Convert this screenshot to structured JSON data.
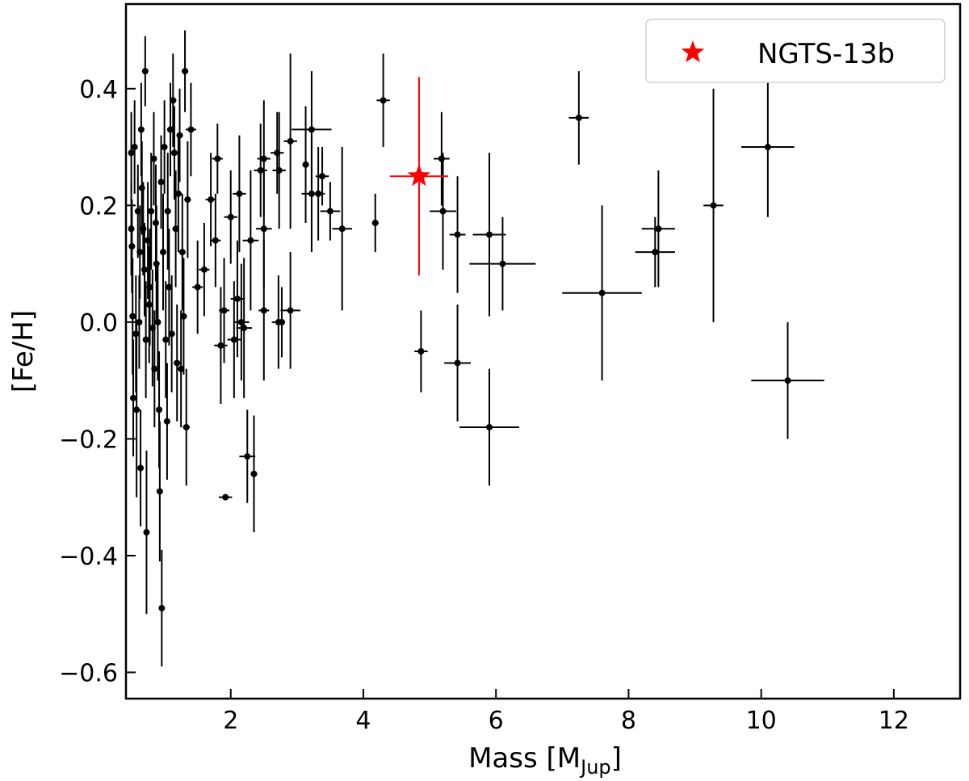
{
  "chart_data": {
    "type": "scatter",
    "xlabel": "Mass [M",
    "xlabel_sub": "Jup",
    "xlabel_end": "]",
    "ylabel": "[Fe/H]",
    "xlim": [
      0.42,
      13.0
    ],
    "ylim": [
      -0.645,
      0.545
    ],
    "xticks": [
      2,
      4,
      6,
      8,
      10,
      12
    ],
    "yticks": [
      -0.6,
      -0.4,
      -0.2,
      0.0,
      0.2,
      0.4
    ],
    "xtick_labels": [
      "2",
      "4",
      "6",
      "8",
      "10",
      "12"
    ],
    "ytick_labels": [
      "−0.6",
      "−0.4",
      "−0.2",
      "0.0",
      "0.2",
      "0.4"
    ],
    "grid": false,
    "legend_position": "top-right",
    "colors": {
      "population": "#000000",
      "highlight": "#ff0000"
    },
    "series": [
      {
        "marker": "circle",
        "points": [
          {
            "x": 0.5,
            "y": 0.29,
            "xerr": 0.02,
            "yerr": 0.07
          },
          {
            "x": 0.5,
            "y": 0.16,
            "xerr": 0.02,
            "yerr": 0.08
          },
          {
            "x": 0.51,
            "y": 0.13,
            "xerr": 0.02,
            "yerr": 0.08
          },
          {
            "x": 0.52,
            "y": 0.01,
            "xerr": 0.02,
            "yerr": 0.1
          },
          {
            "x": 0.53,
            "y": -0.13,
            "xerr": 0.02,
            "yerr": 0.1
          },
          {
            "x": 0.55,
            "y": 0.3,
            "xerr": 0.02,
            "yerr": 0.08
          },
          {
            "x": 0.57,
            "y": -0.02,
            "xerr": 0.02,
            "yerr": 0.1
          },
          {
            "x": 0.58,
            "y": -0.15,
            "xerr": 0.02,
            "yerr": 0.15
          },
          {
            "x": 0.6,
            "y": 0.19,
            "xerr": 0.03,
            "yerr": 0.08
          },
          {
            "x": 0.62,
            "y": 0.0,
            "xerr": 0.03,
            "yerr": 0.08
          },
          {
            "x": 0.63,
            "y": 0.12,
            "xerr": 0.03,
            "yerr": 0.08
          },
          {
            "x": 0.64,
            "y": -0.25,
            "xerr": 0.03,
            "yerr": 0.1
          },
          {
            "x": 0.65,
            "y": 0.33,
            "xerr": 0.03,
            "yerr": 0.08
          },
          {
            "x": 0.66,
            "y": 0.23,
            "xerr": 0.03,
            "yerr": 0.08
          },
          {
            "x": 0.68,
            "y": 0.16,
            "xerr": 0.03,
            "yerr": 0.08
          },
          {
            "x": 0.7,
            "y": 0.09,
            "xerr": 0.03,
            "yerr": 0.08
          },
          {
            "x": 0.71,
            "y": 0.43,
            "xerr": 0.03,
            "yerr": 0.06
          },
          {
            "x": 0.72,
            "y": -0.03,
            "xerr": 0.03,
            "yerr": 0.1
          },
          {
            "x": 0.73,
            "y": -0.36,
            "xerr": 0.03,
            "yerr": 0.14
          },
          {
            "x": 0.75,
            "y": 0.14,
            "xerr": 0.03,
            "yerr": 0.1
          },
          {
            "x": 0.77,
            "y": 0.03,
            "xerr": 0.03,
            "yerr": 0.1
          },
          {
            "x": 0.78,
            "y": 0.06,
            "xerr": 0.03,
            "yerr": 0.1
          },
          {
            "x": 0.8,
            "y": 0.19,
            "xerr": 0.03,
            "yerr": 0.1
          },
          {
            "x": 0.82,
            "y": -0.01,
            "xerr": 0.03,
            "yerr": 0.1
          },
          {
            "x": 0.84,
            "y": 0.28,
            "xerr": 0.04,
            "yerr": 0.08
          },
          {
            "x": 0.85,
            "y": -0.08,
            "xerr": 0.04,
            "yerr": 0.1
          },
          {
            "x": 0.87,
            "y": 0.17,
            "xerr": 0.04,
            "yerr": 0.1
          },
          {
            "x": 0.88,
            "y": 0.1,
            "xerr": 0.04,
            "yerr": 0.1
          },
          {
            "x": 0.9,
            "y": 0.0,
            "xerr": 0.04,
            "yerr": 0.1
          },
          {
            "x": 0.92,
            "y": -0.15,
            "xerr": 0.04,
            "yerr": 0.1
          },
          {
            "x": 0.93,
            "y": -0.29,
            "xerr": 0.04,
            "yerr": 0.12
          },
          {
            "x": 0.95,
            "y": 0.24,
            "xerr": 0.04,
            "yerr": 0.08
          },
          {
            "x": 0.96,
            "y": -0.49,
            "xerr": 0.04,
            "yerr": 0.1
          },
          {
            "x": 0.98,
            "y": 0.12,
            "xerr": 0.04,
            "yerr": 0.1
          },
          {
            "x": 1.0,
            "y": 0.3,
            "xerr": 0.04,
            "yerr": 0.08
          },
          {
            "x": 1.02,
            "y": -0.03,
            "xerr": 0.04,
            "yerr": 0.1
          },
          {
            "x": 1.04,
            "y": -0.17,
            "xerr": 0.05,
            "yerr": 0.1
          },
          {
            "x": 1.05,
            "y": 0.19,
            "xerr": 0.05,
            "yerr": 0.1
          },
          {
            "x": 1.07,
            "y": 0.06,
            "xerr": 0.05,
            "yerr": 0.1
          },
          {
            "x": 1.09,
            "y": 0.33,
            "xerr": 0.05,
            "yerr": 0.08
          },
          {
            "x": 1.11,
            "y": -0.02,
            "xerr": 0.05,
            "yerr": 0.1
          },
          {
            "x": 1.13,
            "y": 0.38,
            "xerr": 0.05,
            "yerr": 0.08
          },
          {
            "x": 1.15,
            "y": 0.29,
            "xerr": 0.05,
            "yerr": 0.08
          },
          {
            "x": 1.17,
            "y": 0.16,
            "xerr": 0.05,
            "yerr": 0.1
          },
          {
            "x": 1.19,
            "y": -0.07,
            "xerr": 0.05,
            "yerr": 0.1
          },
          {
            "x": 1.21,
            "y": 0.22,
            "xerr": 0.05,
            "yerr": 0.1
          },
          {
            "x": 1.23,
            "y": 0.32,
            "xerr": 0.05,
            "yerr": 0.08
          },
          {
            "x": 1.25,
            "y": -0.08,
            "xerr": 0.05,
            "yerr": 0.1
          },
          {
            "x": 1.27,
            "y": 0.12,
            "xerr": 0.05,
            "yerr": 0.1
          },
          {
            "x": 1.29,
            "y": 0.01,
            "xerr": 0.05,
            "yerr": 0.1
          },
          {
            "x": 1.31,
            "y": 0.43,
            "xerr": 0.05,
            "yerr": 0.07
          },
          {
            "x": 1.33,
            "y": -0.18,
            "xerr": 0.05,
            "yerr": 0.1
          },
          {
            "x": 1.35,
            "y": 0.21,
            "xerr": 0.05,
            "yerr": 0.1
          },
          {
            "x": 1.4,
            "y": 0.33,
            "xerr": 0.08,
            "yerr": 0.08
          },
          {
            "x": 1.5,
            "y": 0.06,
            "xerr": 0.08,
            "yerr": 0.08
          },
          {
            "x": 1.6,
            "y": 0.09,
            "xerr": 0.08,
            "yerr": 0.08
          },
          {
            "x": 1.7,
            "y": 0.21,
            "xerr": 0.08,
            "yerr": 0.08
          },
          {
            "x": 1.77,
            "y": 0.14,
            "xerr": 0.08,
            "yerr": 0.08
          },
          {
            "x": 1.8,
            "y": 0.28,
            "xerr": 0.08,
            "yerr": 0.06
          },
          {
            "x": 1.85,
            "y": -0.04,
            "xerr": 0.1,
            "yerr": 0.1
          },
          {
            "x": 1.9,
            "y": 0.02,
            "xerr": 0.08,
            "yerr": 0.09
          },
          {
            "x": 1.92,
            "y": -0.3,
            "xerr": 0.1,
            "yerr": 0.0
          },
          {
            "x": 2.0,
            "y": 0.18,
            "xerr": 0.1,
            "yerr": 0.08
          },
          {
            "x": 2.05,
            "y": -0.03,
            "xerr": 0.1,
            "yerr": 0.1
          },
          {
            "x": 2.1,
            "y": 0.04,
            "xerr": 0.1,
            "yerr": 0.1
          },
          {
            "x": 2.13,
            "y": 0.22,
            "xerr": 0.1,
            "yerr": 0.1
          },
          {
            "x": 2.16,
            "y": 0.0,
            "xerr": 0.12,
            "yerr": 0.1
          },
          {
            "x": 2.2,
            "y": -0.01,
            "xerr": 0.12,
            "yerr": 0.12
          },
          {
            "x": 2.25,
            "y": -0.23,
            "xerr": 0.12,
            "yerr": 0.08
          },
          {
            "x": 2.3,
            "y": 0.14,
            "xerr": 0.12,
            "yerr": 0.12
          },
          {
            "x": 2.35,
            "y": -0.26,
            "xerr": 0.05,
            "yerr": 0.1
          },
          {
            "x": 2.45,
            "y": 0.26,
            "xerr": 0.1,
            "yerr": 0.08
          },
          {
            "x": 2.5,
            "y": 0.28,
            "xerr": 0.1,
            "yerr": 0.1
          },
          {
            "x": 2.5,
            "y": 0.16,
            "xerr": 0.12,
            "yerr": 0.1
          },
          {
            "x": 2.5,
            "y": 0.02,
            "xerr": 0.08,
            "yerr": 0.12
          },
          {
            "x": 2.7,
            "y": 0.29,
            "xerr": 0.1,
            "yerr": 0.07
          },
          {
            "x": 2.72,
            "y": 0.0,
            "xerr": 0.1,
            "yerr": 0.08
          },
          {
            "x": 2.73,
            "y": 0.26,
            "xerr": 0.1,
            "yerr": 0.1
          },
          {
            "x": 2.77,
            "y": 0.0,
            "xerr": 0.05,
            "yerr": 0.06
          },
          {
            "x": 2.9,
            "y": 0.31,
            "xerr": 0.1,
            "yerr": 0.15
          },
          {
            "x": 2.9,
            "y": 0.02,
            "xerr": 0.15,
            "yerr": 0.1
          },
          {
            "x": 3.13,
            "y": 0.27,
            "xerr": 0.05,
            "yerr": 0.1
          },
          {
            "x": 3.22,
            "y": 0.33,
            "xerr": 0.3,
            "yerr": 0.1
          },
          {
            "x": 3.22,
            "y": 0.22,
            "xerr": 0.15,
            "yerr": 0.1
          },
          {
            "x": 3.32,
            "y": 0.22,
            "xerr": 0.1,
            "yerr": 0.08
          },
          {
            "x": 3.38,
            "y": 0.25,
            "xerr": 0.1,
            "yerr": 0.05
          },
          {
            "x": 3.5,
            "y": 0.19,
            "xerr": 0.15,
            "yerr": 0.05
          },
          {
            "x": 3.68,
            "y": 0.16,
            "xerr": 0.15,
            "yerr": 0.14
          },
          {
            "x": 4.18,
            "y": 0.17,
            "xerr": 0.05,
            "yerr": 0.05
          },
          {
            "x": 4.3,
            "y": 0.38,
            "xerr": 0.1,
            "yerr": 0.08
          },
          {
            "x": 4.87,
            "y": -0.05,
            "xerr": 0.1,
            "yerr": 0.07
          },
          {
            "x": 5.18,
            "y": 0.28,
            "xerr": 0.12,
            "yerr": 0.08
          },
          {
            "x": 5.2,
            "y": 0.19,
            "xerr": 0.2,
            "yerr": 0.1
          },
          {
            "x": 5.42,
            "y": -0.07,
            "xerr": 0.2,
            "yerr": 0.1
          },
          {
            "x": 5.42,
            "y": 0.15,
            "xerr": 0.12,
            "yerr": 0.1
          },
          {
            "x": 5.9,
            "y": 0.15,
            "xerr": 0.25,
            "yerr": 0.14
          },
          {
            "x": 5.9,
            "y": -0.18,
            "xerr": 0.45,
            "yerr": 0.1
          },
          {
            "x": 6.1,
            "y": 0.1,
            "xerr": 0.5,
            "yerr": 0.08
          },
          {
            "x": 7.25,
            "y": 0.35,
            "xerr": 0.15,
            "yerr": 0.08
          },
          {
            "x": 7.6,
            "y": 0.05,
            "xerr": 0.6,
            "yerr": 0.15
          },
          {
            "x": 8.4,
            "y": 0.12,
            "xerr": 0.3,
            "yerr": 0.06
          },
          {
            "x": 8.45,
            "y": 0.16,
            "xerr": 0.25,
            "yerr": 0.1
          },
          {
            "x": 9.28,
            "y": 0.2,
            "xerr": 0.15,
            "yerr": 0.2
          },
          {
            "x": 10.1,
            "y": 0.3,
            "xerr": 0.4,
            "yerr": 0.12
          },
          {
            "x": 10.4,
            "y": -0.1,
            "xerr": 0.55,
            "yerr": 0.1
          }
        ]
      },
      {
        "name": "NGTS-13b",
        "marker": "star",
        "points": [
          {
            "x": 4.84,
            "y": 0.25,
            "xerr": 0.44,
            "yerr": 0.17
          }
        ]
      }
    ]
  }
}
